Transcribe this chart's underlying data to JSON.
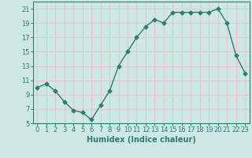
{
  "x": [
    0,
    1,
    2,
    3,
    4,
    5,
    6,
    7,
    8,
    9,
    10,
    11,
    12,
    13,
    14,
    15,
    16,
    17,
    18,
    19,
    20,
    21,
    22,
    23
  ],
  "y": [
    10.0,
    10.5,
    9.5,
    8.0,
    6.8,
    6.5,
    5.5,
    7.5,
    9.5,
    13.0,
    15.0,
    17.0,
    18.5,
    19.5,
    19.0,
    20.5,
    20.5,
    20.5,
    20.5,
    20.5,
    21.0,
    19.0,
    14.5,
    12.0
  ],
  "xlabel": "Humidex (Indice chaleur)",
  "xlim": [
    -0.5,
    23.5
  ],
  "ylim": [
    5,
    22
  ],
  "yticks": [
    5,
    7,
    9,
    11,
    13,
    15,
    17,
    19,
    21
  ],
  "xticks": [
    0,
    1,
    2,
    3,
    4,
    5,
    6,
    7,
    8,
    9,
    10,
    11,
    12,
    13,
    14,
    15,
    16,
    17,
    18,
    19,
    20,
    21,
    22,
    23
  ],
  "line_color": "#2e7d6e",
  "marker": "D",
  "marker_size": 2.5,
  "bg_color": "#cde8e5",
  "grid_color": "#e8c8c8",
  "text_color": "#2e7d6e",
  "label_fontsize": 7.0,
  "tick_fontsize": 6.0
}
